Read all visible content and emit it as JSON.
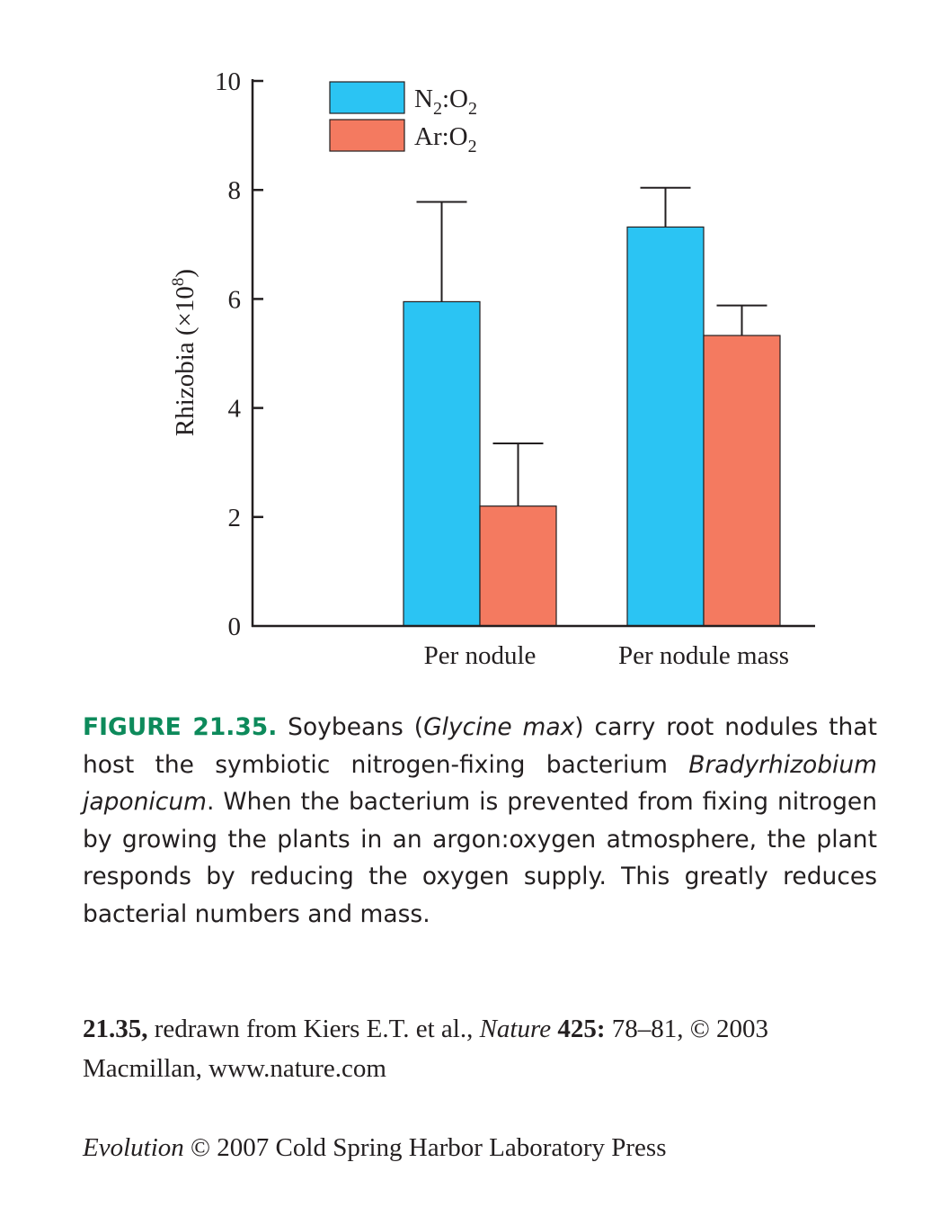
{
  "chart_data": {
    "type": "bar",
    "categories": [
      "Per nodule",
      "Per nodule mass"
    ],
    "series": [
      {
        "name": "N₂:O₂",
        "name_base": "N",
        "name_sub": "2",
        "name_mid": ":O",
        "name_sub2": "2",
        "values": [
          5.95,
          7.32
        ],
        "error": [
          1.83,
          0.72
        ],
        "color": "#2bc4f3"
      },
      {
        "name": "Ar:O₂",
        "name_base": "Ar:O",
        "name_sub": "2",
        "values": [
          2.2,
          5.33
        ],
        "error": [
          1.15,
          0.55
        ],
        "color": "#f47a60"
      }
    ],
    "ylabel": "Rhizobia (×10",
    "ylabel_sup": "8",
    "ylabel_close": ")",
    "ylim": [
      0,
      10
    ],
    "yticks": [
      "0",
      "2",
      "4",
      "6",
      "8",
      "10"
    ],
    "legend": "top-left",
    "grid": false
  },
  "caption": {
    "figure_label": "FIGURE 21.35.",
    "t1": " Soybeans (",
    "i1": "Glycine max",
    "t2": ") carry root nodules that host the symbiotic nitrogen-fixing bacterium ",
    "i2": "Bradyrhizobium japonicum",
    "t3": ". When the bacterium is prevented from fixing nitrogen by growing the plants in an argon:oxygen atmosphere, the plant responds by reducing the oxygen supply. This greatly reduces bacterial numbers and mass."
  },
  "credit": {
    "b1": "21.35,",
    "t1": " redrawn from Kiers E.T. et al., ",
    "i1": "Nature",
    "b2": " 425:",
    "t2": " 78–81, © 2003 Macmillan, www.nature.com"
  },
  "footer": {
    "i1": "Evolution",
    "t1": " © 2007 Cold Spring Harbor Laboratory Press"
  }
}
